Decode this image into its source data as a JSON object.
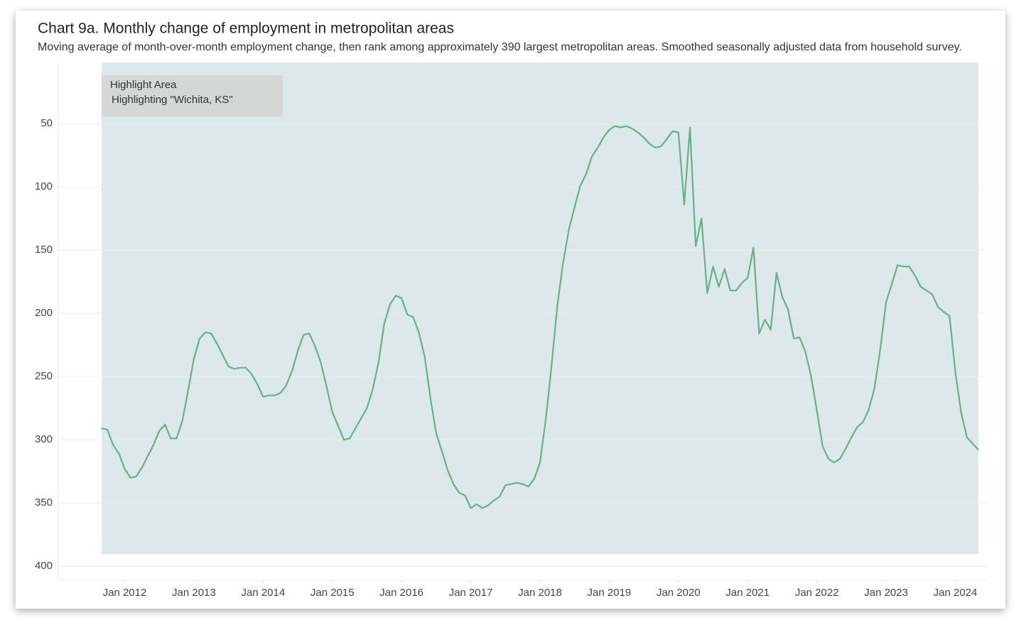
{
  "chart_data": {
    "type": "line",
    "title": "Chart 9a. Monthly change of employment in metropolitan areas",
    "subtitle": "Moving average of month-over-month employment change, then rank among approximately 390 largest metropolitan areas. Smoothed seasonally adjusted data from household survey.",
    "highlight": {
      "title": "Highlight Area",
      "text": "Highlighting \"Wichita, KS\""
    },
    "x": [
      "2011-09",
      "2011-10",
      "2011-11",
      "2011-12",
      "2012-01",
      "2012-02",
      "2012-03",
      "2012-04",
      "2012-05",
      "2012-06",
      "2012-07",
      "2012-08",
      "2012-09",
      "2012-10",
      "2012-11",
      "2012-12",
      "2013-01",
      "2013-02",
      "2013-03",
      "2013-04",
      "2013-05",
      "2013-06",
      "2013-07",
      "2013-08",
      "2013-09",
      "2013-10",
      "2013-11",
      "2013-12",
      "2014-01",
      "2014-02",
      "2014-03",
      "2014-04",
      "2014-05",
      "2014-06",
      "2014-07",
      "2014-08",
      "2014-09",
      "2014-10",
      "2014-11",
      "2014-12",
      "2015-01",
      "2015-02",
      "2015-03",
      "2015-04",
      "2015-05",
      "2015-06",
      "2015-07",
      "2015-08",
      "2015-09",
      "2015-10",
      "2015-11",
      "2015-12",
      "2016-01",
      "2016-02",
      "2016-03",
      "2016-04",
      "2016-05",
      "2016-06",
      "2016-07",
      "2016-08",
      "2016-09",
      "2016-10",
      "2016-11",
      "2016-12",
      "2017-01",
      "2017-02",
      "2017-03",
      "2017-04",
      "2017-05",
      "2017-06",
      "2017-07",
      "2017-08",
      "2017-09",
      "2017-10",
      "2017-11",
      "2017-12",
      "2018-01",
      "2018-02",
      "2018-03",
      "2018-04",
      "2018-05",
      "2018-06",
      "2018-07",
      "2018-08",
      "2018-09",
      "2018-10",
      "2018-11",
      "2018-12",
      "2019-01",
      "2019-02",
      "2019-03",
      "2019-04",
      "2019-05",
      "2019-06",
      "2019-07",
      "2019-08",
      "2019-09",
      "2019-10",
      "2019-11",
      "2019-12",
      "2020-01",
      "2020-02",
      "2020-03",
      "2020-04",
      "2020-05",
      "2020-06",
      "2020-07",
      "2020-08",
      "2020-09",
      "2020-10",
      "2020-11",
      "2020-12",
      "2021-01",
      "2021-02",
      "2021-03",
      "2021-04",
      "2021-05",
      "2021-06",
      "2021-07",
      "2021-08",
      "2021-09",
      "2021-10",
      "2021-11",
      "2021-12",
      "2022-01",
      "2022-02",
      "2022-03",
      "2022-04",
      "2022-05",
      "2022-06",
      "2022-07",
      "2022-08",
      "2022-09",
      "2022-10",
      "2022-11",
      "2022-12",
      "2023-01",
      "2023-02",
      "2023-03",
      "2023-04",
      "2023-05",
      "2023-06",
      "2023-07",
      "2023-08",
      "2023-09",
      "2023-10",
      "2023-11",
      "2023-12",
      "2024-01",
      "2024-02",
      "2024-03",
      "2024-04",
      "2024-05"
    ],
    "series": [
      {
        "color": "#66b08a",
        "values": [
          291,
          292,
          304,
          311,
          323,
          330,
          329,
          322,
          313,
          304,
          293,
          288,
          299,
          299,
          285,
          261,
          236,
          220,
          215,
          216,
          224,
          233,
          242,
          244,
          243,
          243,
          248,
          256,
          266,
          265,
          265,
          263,
          257,
          246,
          230,
          217,
          216,
          226,
          239,
          258,
          278,
          289,
          300,
          299,
          291,
          283,
          275,
          260,
          239,
          208,
          193,
          186,
          188,
          201,
          203,
          215,
          234,
          267,
          295,
          309,
          324,
          335,
          342,
          344,
          354,
          351,
          354,
          352,
          348,
          345,
          336,
          335,
          334,
          335,
          337,
          331,
          318,
          284,
          242,
          194,
          160,
          134,
          116,
          99,
          90,
          76,
          69,
          61,
          55,
          52,
          53,
          52,
          54,
          57,
          61,
          66,
          69,
          68,
          62,
          56,
          57,
          114,
          53,
          147,
          125,
          184,
          163,
          179,
          165,
          182,
          182,
          176,
          172,
          148,
          216,
          205,
          213,
          168,
          187,
          197,
          220,
          219,
          230,
          250,
          277,
          305,
          315,
          318,
          315,
          307,
          298,
          290,
          286,
          276,
          259,
          228,
          191,
          177,
          162,
          163,
          163,
          170,
          179,
          182,
          185,
          195,
          199,
          202,
          246,
          278,
          298,
          303,
          308
        ]
      }
    ],
    "xlim": [
      "2011-09",
      "2024-05"
    ],
    "xticks": [
      {
        "value": "2012-01",
        "label": "Jan 2012"
      },
      {
        "value": "2013-01",
        "label": "Jan 2013"
      },
      {
        "value": "2014-01",
        "label": "Jan 2014"
      },
      {
        "value": "2015-01",
        "label": "Jan 2015"
      },
      {
        "value": "2016-01",
        "label": "Jan 2016"
      },
      {
        "value": "2017-01",
        "label": "Jan 2017"
      },
      {
        "value": "2018-01",
        "label": "Jan 2018"
      },
      {
        "value": "2019-01",
        "label": "Jan 2019"
      },
      {
        "value": "2020-01",
        "label": "Jan 2020"
      },
      {
        "value": "2021-01",
        "label": "Jan 2021"
      },
      {
        "value": "2022-01",
        "label": "Jan 2022"
      },
      {
        "value": "2023-01",
        "label": "Jan 2023"
      },
      {
        "value": "2024-01",
        "label": "Jan 2024"
      }
    ],
    "ylim": [
      0,
      410
    ],
    "y_inverted": true,
    "yticks": [
      50,
      100,
      150,
      200,
      250,
      300,
      350,
      400
    ],
    "grid": true
  }
}
